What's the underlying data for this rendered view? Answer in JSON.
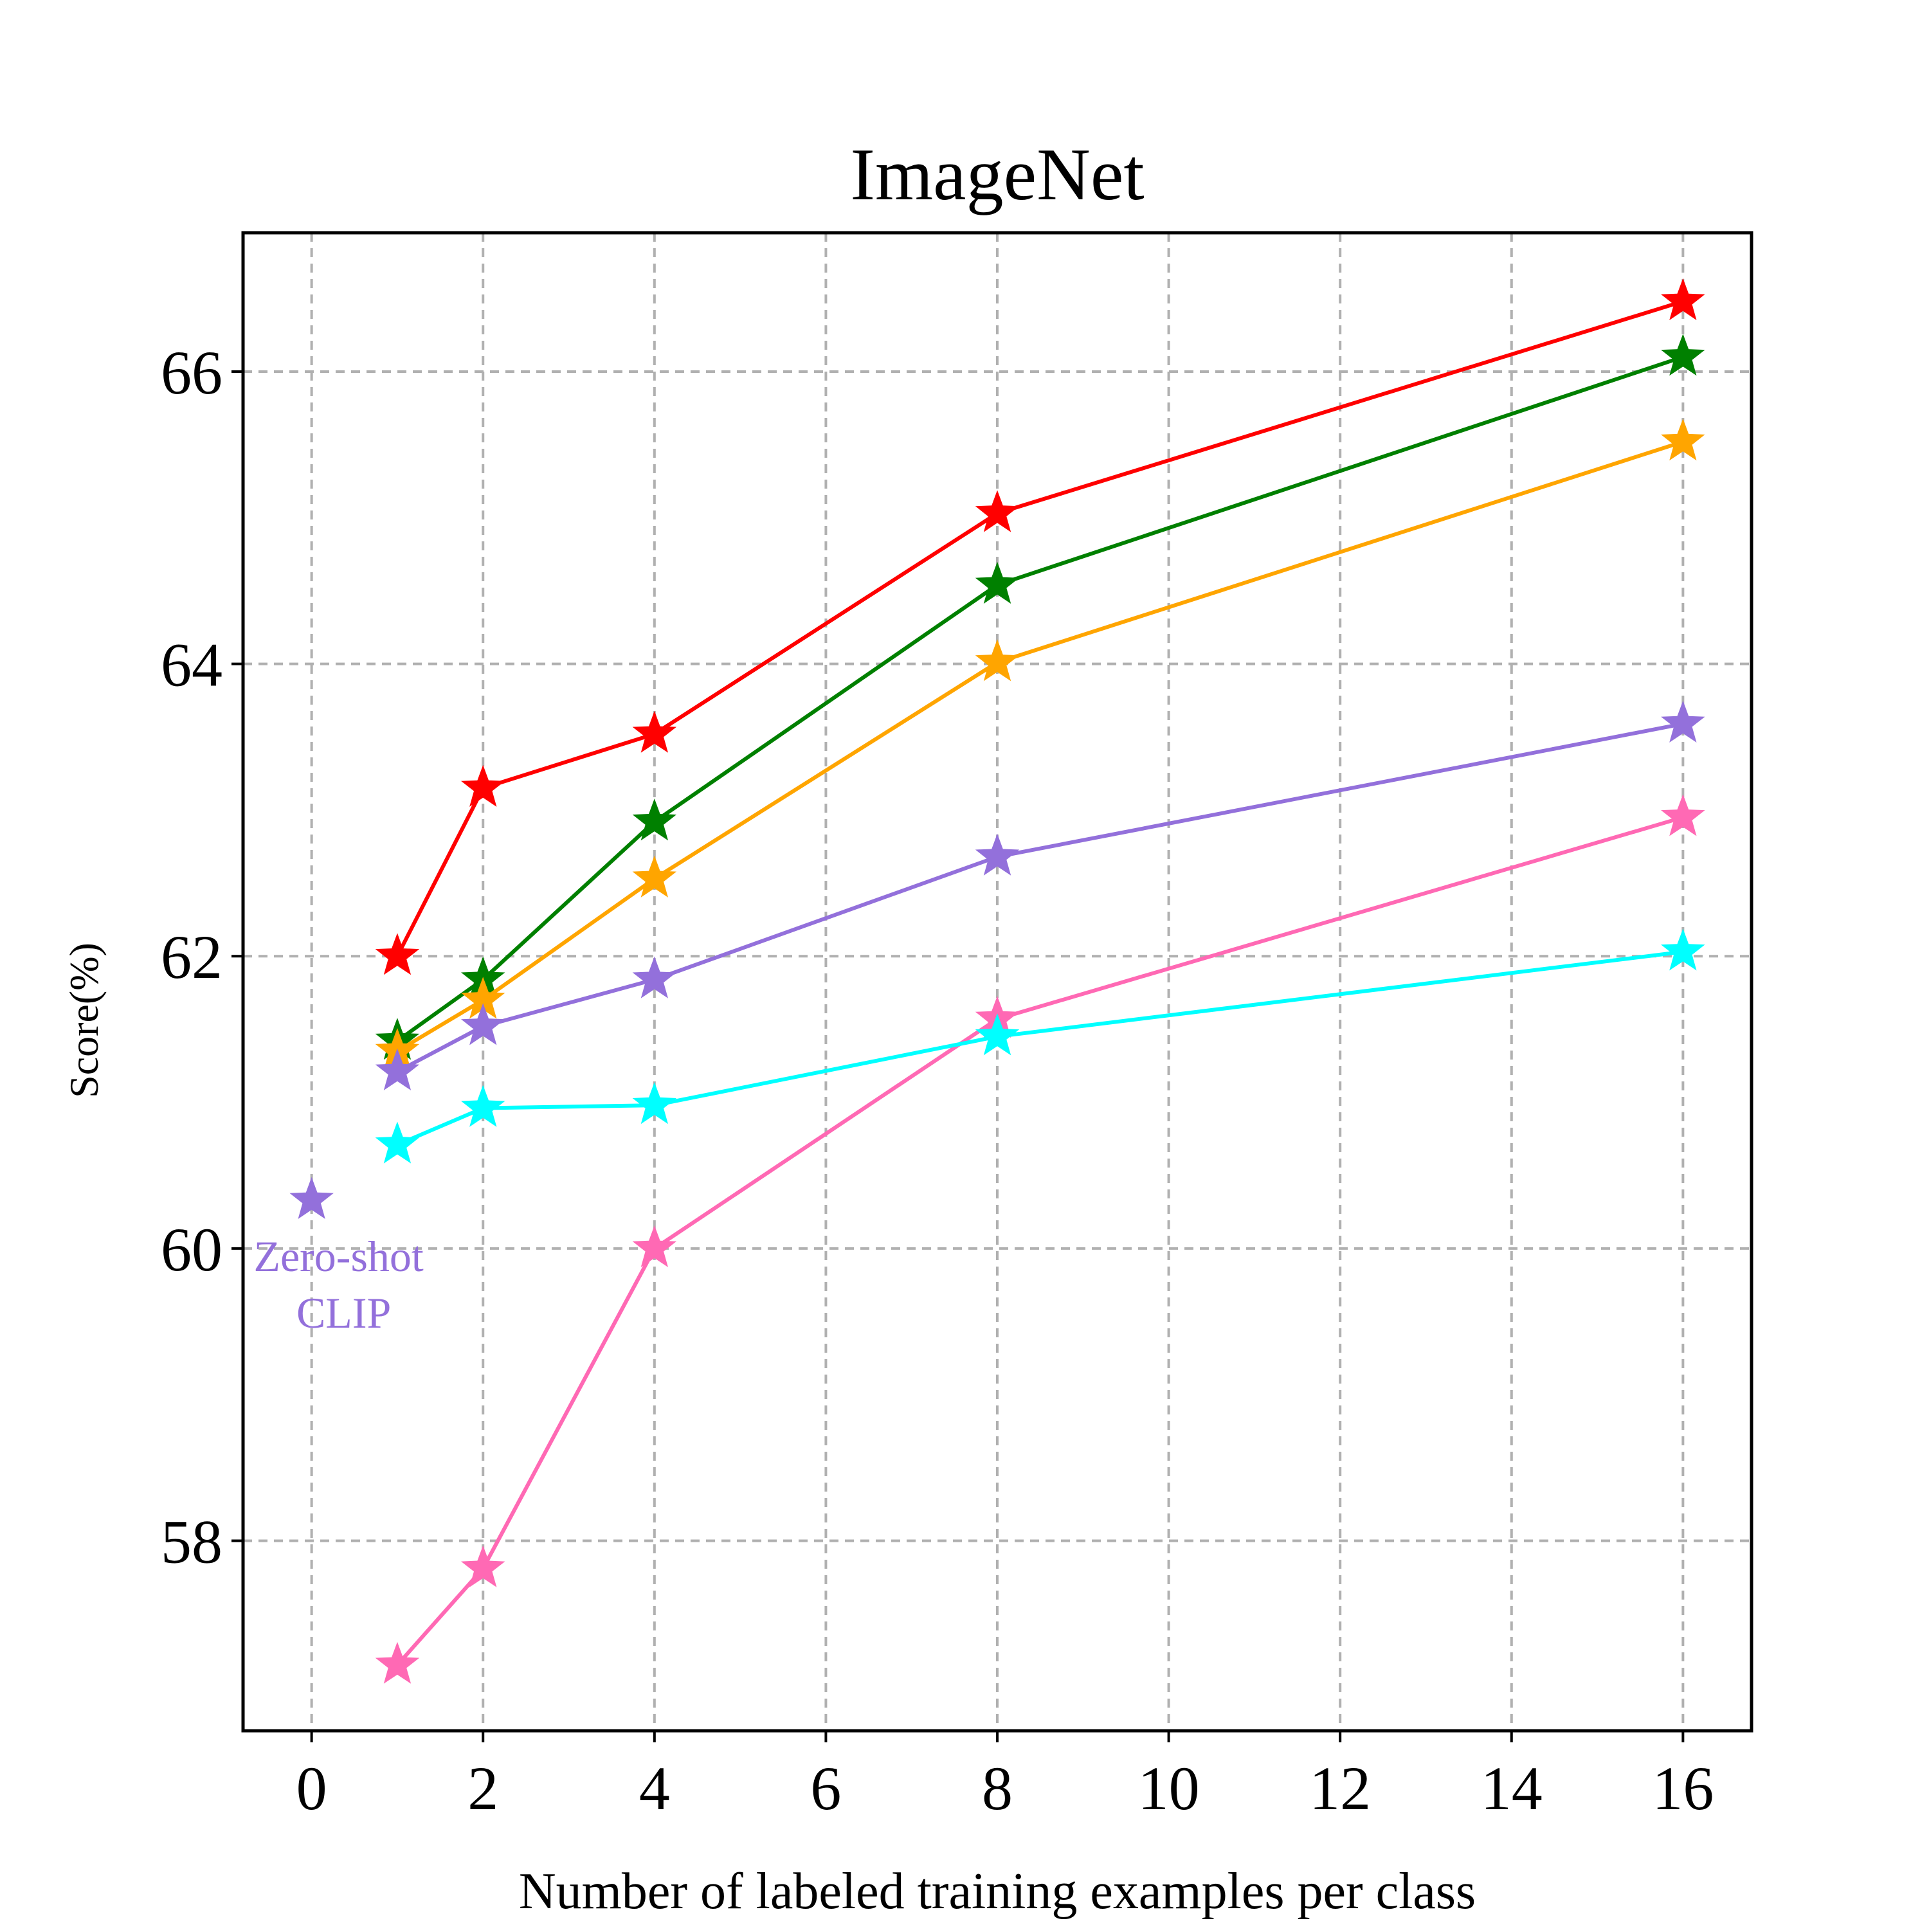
{
  "chart_data": {
    "type": "line",
    "title": "ImageNet",
    "xlabel": "Number of labeled training examples per class",
    "ylabel": "Score(%)",
    "xlim": [
      -0.8,
      16.8
    ],
    "ylim": [
      56.7,
      66.95
    ],
    "xticks": [
      0,
      2,
      4,
      6,
      8,
      10,
      12,
      14,
      16
    ],
    "yticks": [
      58,
      60,
      62,
      64,
      66
    ],
    "grid": true,
    "marker": "star",
    "series": [
      {
        "color": "#ff0000",
        "x": [
          1,
          2,
          4,
          8,
          16
        ],
        "y": [
          62.0,
          63.15,
          63.52,
          65.03,
          66.48
        ]
      },
      {
        "color": "#008000",
        "x": [
          1,
          2,
          4,
          8,
          16
        ],
        "y": [
          61.42,
          61.84,
          62.92,
          64.54,
          66.1
        ]
      },
      {
        "color": "#ffa500",
        "x": [
          1,
          2,
          4,
          8,
          16
        ],
        "y": [
          61.35,
          61.7,
          62.53,
          64.01,
          65.52
        ]
      },
      {
        "color": "#9370db",
        "x": [
          1,
          2,
          4,
          8,
          16
        ],
        "y": [
          61.21,
          61.52,
          61.84,
          62.68,
          63.59
        ]
      },
      {
        "color": "#ff69b4",
        "x": [
          1,
          2,
          4,
          8,
          16
        ],
        "y": [
          57.15,
          57.81,
          60.0,
          61.57,
          62.95
        ]
      },
      {
        "color": "#00ffff",
        "x": [
          1,
          2,
          4,
          8,
          16
        ],
        "y": [
          60.71,
          60.96,
          60.98,
          61.45,
          62.03
        ]
      }
    ],
    "annotation": {
      "line1": "Zero-shot",
      "line2": "CLIP",
      "x": 0,
      "y": 60.33,
      "color": "#9370db"
    }
  }
}
